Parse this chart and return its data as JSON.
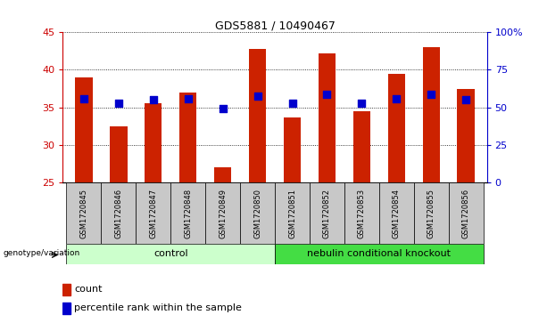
{
  "title": "GDS5881 / 10490467",
  "samples": [
    "GSM1720845",
    "GSM1720846",
    "GSM1720847",
    "GSM1720848",
    "GSM1720849",
    "GSM1720850",
    "GSM1720851",
    "GSM1720852",
    "GSM1720853",
    "GSM1720854",
    "GSM1720855",
    "GSM1720856"
  ],
  "counts": [
    39.0,
    32.5,
    35.5,
    37.0,
    27.0,
    42.8,
    33.7,
    42.2,
    34.5,
    39.5,
    43.0,
    37.5
  ],
  "percentiles": [
    36.2,
    35.5,
    36.0,
    36.2,
    34.8,
    36.5,
    35.5,
    36.8,
    35.5,
    36.2,
    36.8,
    36.0
  ],
  "ylim_left": [
    25,
    45
  ],
  "ylim_right": [
    0,
    100
  ],
  "yticks_left": [
    25,
    30,
    35,
    40,
    45
  ],
  "yticks_right": [
    0,
    25,
    50,
    75,
    100
  ],
  "yticklabels_right": [
    "0",
    "25",
    "50",
    "75",
    "100%"
  ],
  "bar_color": "#CC2200",
  "dot_color": "#0000CC",
  "control_color": "#CCFFCC",
  "knockout_color": "#44DD44",
  "label_color_left": "#CC0000",
  "label_color_right": "#0000CC",
  "grid_style": "dotted",
  "bar_width": 0.5,
  "dot_size": 40,
  "legend_items": [
    "count",
    "percentile rank within the sample"
  ],
  "group_label": "genotype/variation",
  "n_control": 6,
  "n_knockout": 6
}
